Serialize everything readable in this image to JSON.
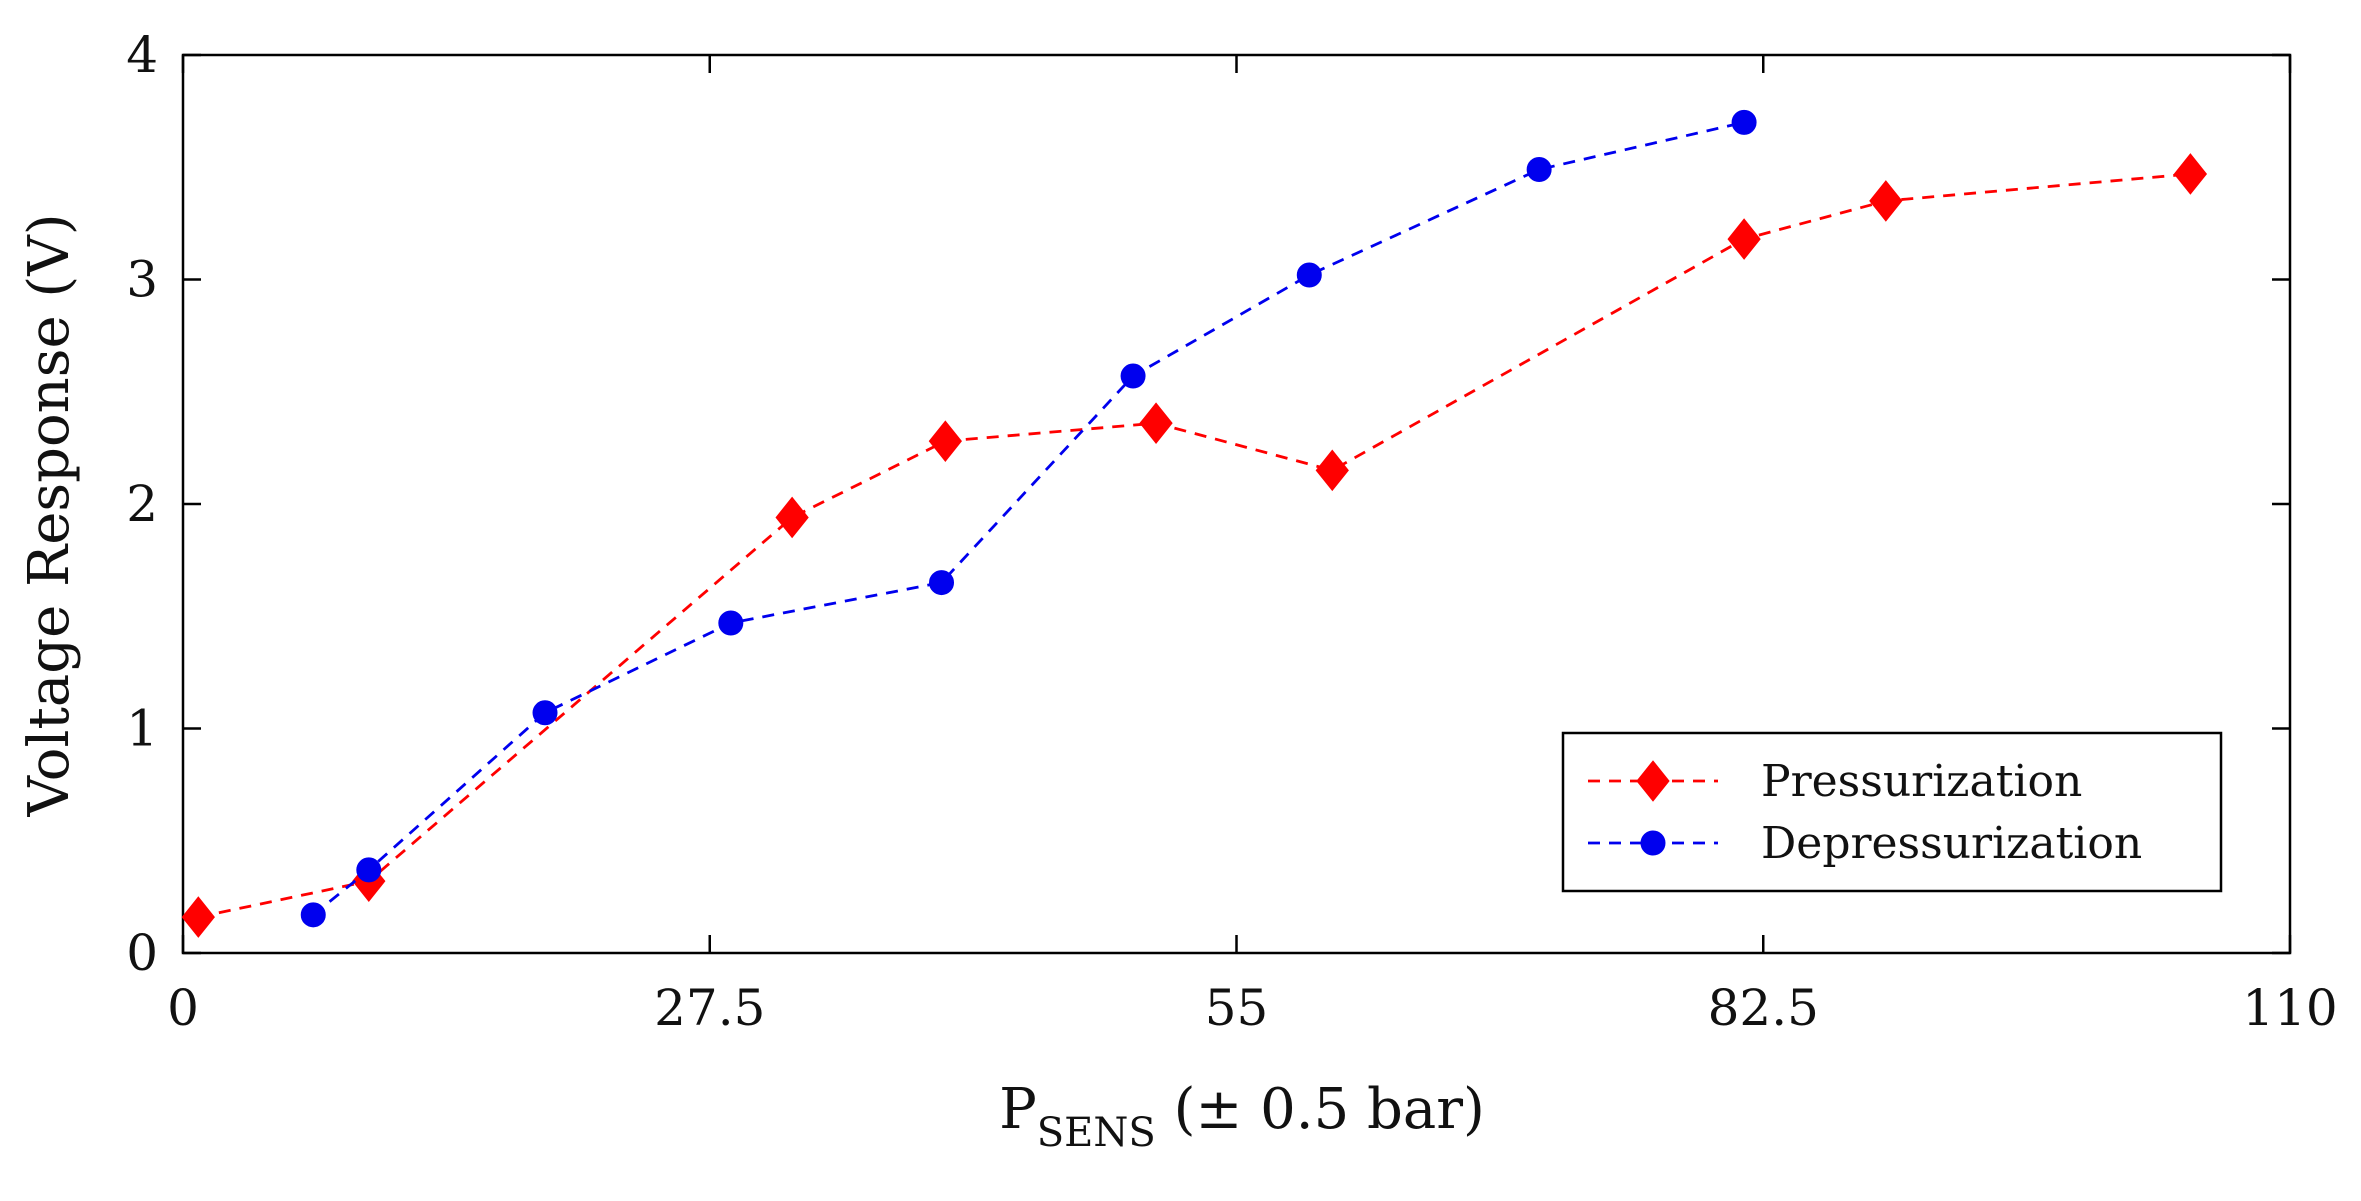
{
  "chart_data": {
    "type": "line",
    "title": "",
    "xlabel": {
      "main": "P",
      "subscript": "SENS",
      "suffix": " (± 0.5 bar)"
    },
    "ylabel": "Voltage Response (V)",
    "xlim": [
      0,
      110
    ],
    "ylim": [
      0,
      4
    ],
    "xticks": [
      0,
      27.5,
      55,
      82.5,
      110
    ],
    "xtick_labels": [
      "0",
      "27.5",
      "55",
      "82.5",
      "110"
    ],
    "yticks": [
      0,
      1,
      2,
      3,
      4
    ],
    "ytick_labels": [
      "0",
      "1",
      "2",
      "3",
      "4"
    ],
    "grid": false,
    "legend_position": "bottom-right",
    "series": [
      {
        "name": "Pressurization",
        "color": "#ff0000",
        "marker": "diamond",
        "line_style": "dashed",
        "x": [
          0.8,
          9.7,
          31.8,
          39.8,
          50.8,
          60.0,
          81.5,
          88.9,
          104.8
        ],
        "y": [
          0.16,
          0.32,
          1.94,
          2.28,
          2.36,
          2.15,
          3.18,
          3.35,
          3.47
        ]
      },
      {
        "name": "Depressurization",
        "color": "#0000ee",
        "marker": "circle",
        "line_style": "dashed",
        "x": [
          6.8,
          9.7,
          18.9,
          28.6,
          39.6,
          49.6,
          58.8,
          70.8,
          81.5
        ],
        "y": [
          0.17,
          0.37,
          1.07,
          1.47,
          1.65,
          2.57,
          3.02,
          3.49,
          3.7
        ]
      }
    ]
  }
}
